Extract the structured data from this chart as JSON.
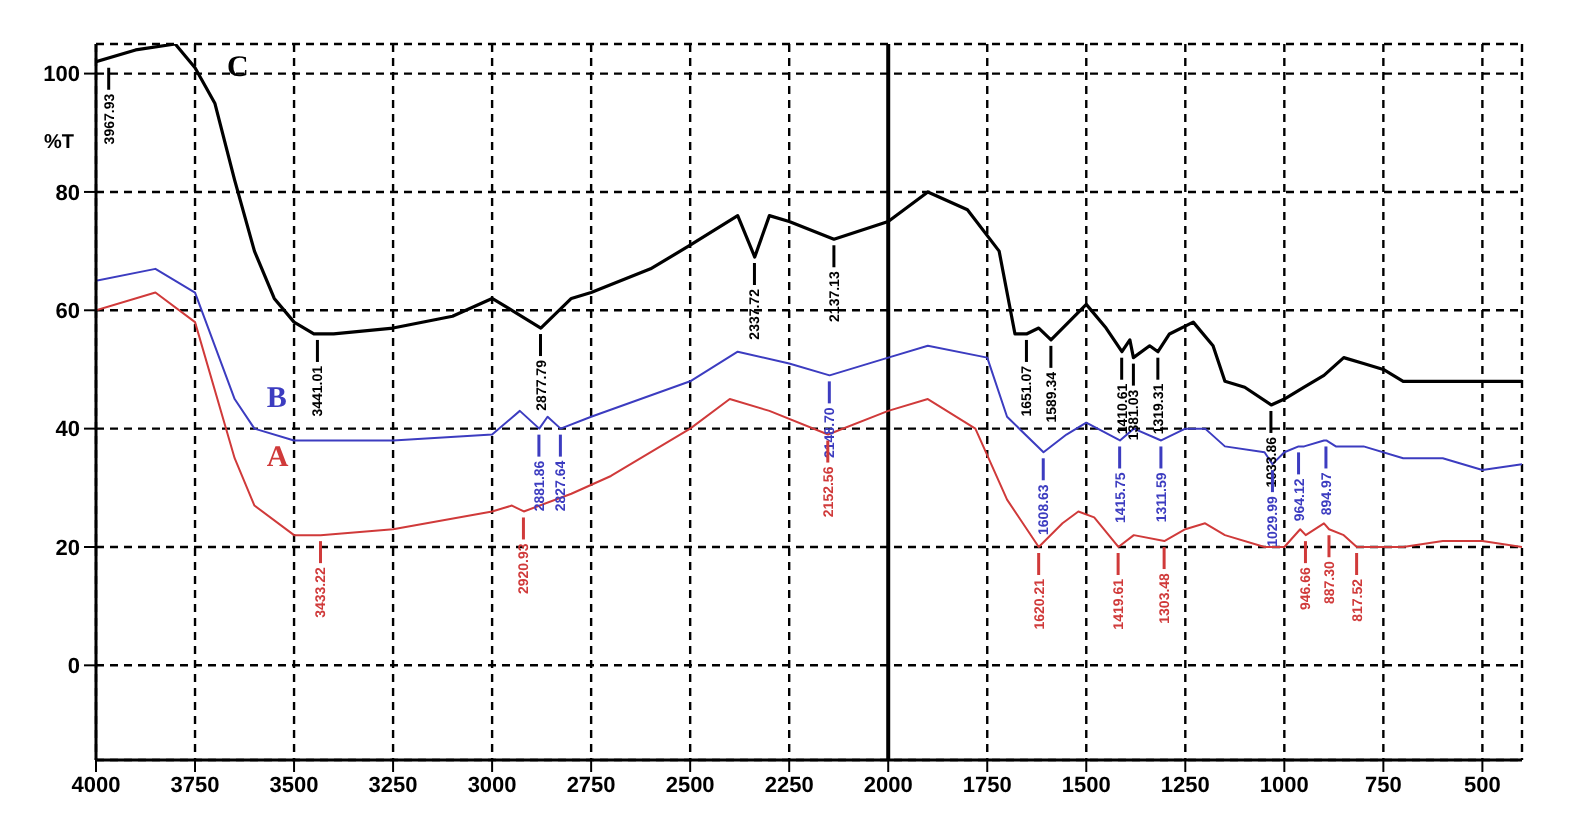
{
  "chart_data": {
    "type": "line",
    "ylabel": "%T",
    "xlim": [
      4000,
      400
    ],
    "xticks": [
      4000,
      3750,
      3500,
      3250,
      3000,
      2750,
      2500,
      2250,
      2000,
      1750,
      1500,
      1250,
      1000,
      750,
      500
    ],
    "ylim": [
      -16,
      105
    ],
    "yticks": [
      0,
      20,
      40,
      60,
      80,
      100
    ],
    "grid": true,
    "legend": false,
    "marker": "none",
    "line_style": "solid",
    "ref_lines": [
      {
        "axis": "x",
        "value": 2000,
        "color": "#000000",
        "line_style": "solid"
      }
    ],
    "series": [
      {
        "name": "C",
        "color": "#000000",
        "x": [
          4000,
          3900,
          3800,
          3750,
          3700,
          3650,
          3600,
          3550,
          3500,
          3450,
          3400,
          3250,
          3100,
          3000,
          2950,
          2877,
          2800,
          2750,
          2600,
          2500,
          2380,
          2337,
          2300,
          2250,
          2137,
          2000,
          1900,
          1800,
          1720,
          1680,
          1651,
          1620,
          1589,
          1500,
          1450,
          1410,
          1390,
          1381,
          1340,
          1319,
          1290,
          1230,
          1180,
          1150,
          1100,
          1033,
          1000,
          950,
          900,
          850,
          800,
          750,
          700,
          650,
          600,
          500,
          400
        ],
        "values": [
          102,
          104,
          105,
          101,
          95,
          82,
          70,
          62,
          58,
          56,
          56,
          57,
          59,
          62,
          60,
          57,
          62,
          63,
          67,
          71,
          76,
          69,
          76,
          75,
          72,
          75,
          80,
          77,
          70,
          56,
          56,
          57,
          55,
          61,
          57,
          53,
          55,
          52,
          54,
          53,
          56,
          58,
          54,
          48,
          47,
          44,
          45,
          47,
          49,
          52,
          51,
          50,
          48,
          48,
          48,
          48,
          48
        ]
      },
      {
        "name": "B",
        "color": "#3c3cc0",
        "x": [
          4000,
          3850,
          3750,
          3650,
          3600,
          3500,
          3250,
          3000,
          2930,
          2881,
          2860,
          2827,
          2750,
          2500,
          2380,
          2250,
          2148,
          2000,
          1900,
          1750,
          1700,
          1608,
          1550,
          1500,
          1415,
          1380,
          1311,
          1250,
          1200,
          1150,
          1050,
          1030,
          1000,
          964,
          950,
          900,
          894,
          870,
          800,
          700,
          600,
          500,
          400
        ],
        "values": [
          65,
          67,
          63,
          45,
          40,
          38,
          38,
          39,
          43,
          40,
          42,
          40,
          42,
          48,
          53,
          51,
          49,
          52,
          54,
          52,
          42,
          36,
          39,
          41,
          38,
          40,
          38,
          40,
          40,
          37,
          36,
          34,
          36,
          37,
          37,
          38,
          38,
          37,
          37,
          35,
          35,
          33,
          34
        ]
      },
      {
        "name": "A",
        "color": "#d03a3a",
        "x": [
          4000,
          3850,
          3750,
          3650,
          3600,
          3500,
          3433,
          3250,
          3000,
          2950,
          2920,
          2800,
          2700,
          2500,
          2400,
          2300,
          2152,
          2000,
          1900,
          1780,
          1700,
          1620,
          1560,
          1520,
          1480,
          1419,
          1380,
          1303,
          1250,
          1200,
          1150,
          1050,
          1000,
          960,
          946,
          900,
          887,
          850,
          817,
          700,
          600,
          500,
          400
        ],
        "values": [
          60,
          63,
          58,
          35,
          27,
          22,
          22,
          23,
          26,
          27,
          26,
          29,
          32,
          40,
          45,
          43,
          39,
          43,
          45,
          40,
          28,
          20,
          24,
          26,
          25,
          20,
          22,
          21,
          23,
          24,
          22,
          20,
          20,
          23,
          22,
          24,
          23,
          22,
          20,
          20,
          21,
          21,
          20
        ]
      }
    ],
    "annotations": [
      {
        "text": "3967.93",
        "x": 3967.93,
        "y": 102
      },
      {
        "text": "3441.01",
        "x": 3441.01,
        "y": 56
      },
      {
        "text": "2877.79",
        "x": 2877.79,
        "y": 57
      },
      {
        "text": "2337.72",
        "x": 2337.72,
        "y": 69
      },
      {
        "text": "2137.13",
        "x": 2137.13,
        "y": 72
      },
      {
        "text": "1651.07",
        "x": 1651.07,
        "y": 56
      },
      {
        "text": "1589.34",
        "x": 1589.34,
        "y": 55
      },
      {
        "text": "1410.61",
        "x": 1410.61,
        "y": 53
      },
      {
        "text": "1381.03",
        "x": 1381.03,
        "y": 52
      },
      {
        "text": "1319.31",
        "x": 1319.31,
        "y": 53
      },
      {
        "text": "1033.86",
        "x": 1033.86,
        "y": 44
      },
      {
        "text": "2881.86",
        "x": 2881.86,
        "y": 40
      },
      {
        "text": "2827.64",
        "x": 2827.64,
        "y": 40
      },
      {
        "text": "2148.70",
        "x": 2148.7,
        "y": 49
      },
      {
        "text": "1608.63",
        "x": 1608.63,
        "y": 36
      },
      {
        "text": "1415.75",
        "x": 1415.75,
        "y": 38
      },
      {
        "text": "1311.59",
        "x": 1311.59,
        "y": 38
      },
      {
        "text": "1029.99",
        "x": 1029.99,
        "y": 34
      },
      {
        "text": "964.12",
        "x": 964.12,
        "y": 37
      },
      {
        "text": "894.97",
        "x": 894.97,
        "y": 38
      },
      {
        "text": "3433.22",
        "x": 3433.22,
        "y": 22
      },
      {
        "text": "2920.93",
        "x": 2920.93,
        "y": 26
      },
      {
        "text": "2152.56",
        "x": 2152.56,
        "y": 39
      },
      {
        "text": "1620.21",
        "x": 1620.21,
        "y": 20
      },
      {
        "text": "1419.61",
        "x": 1419.61,
        "y": 20
      },
      {
        "text": "1303.48",
        "x": 1303.48,
        "y": 21
      },
      {
        "text": "946.66",
        "x": 946.66,
        "y": 22
      },
      {
        "text": "887.30",
        "x": 887.3,
        "y": 23
      },
      {
        "text": "817.52",
        "x": 817.52,
        "y": 20
      }
    ]
  }
}
